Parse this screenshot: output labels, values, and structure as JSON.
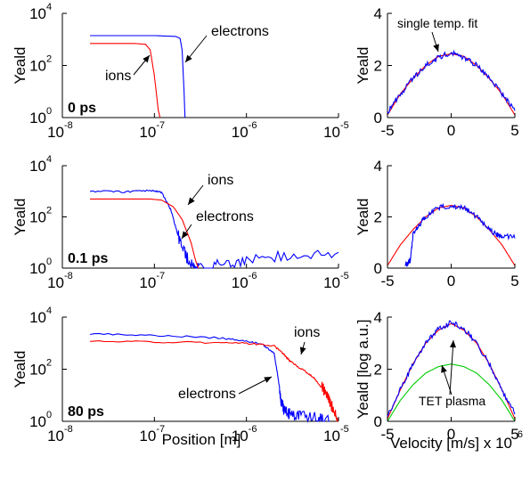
{
  "colors": {
    "ions": "#ff0000",
    "electrons": "#0000ff",
    "fit": "#ff0000",
    "tet": "#00cc00"
  },
  "position_axis": {
    "xlabel": "Position [m]",
    "ylabel": "Yeald",
    "x_ticks": [
      {
        "base": "10",
        "exp": "-8"
      },
      {
        "base": "10",
        "exp": "-7"
      },
      {
        "base": "10",
        "exp": "-6"
      },
      {
        "base": "10",
        "exp": "-5"
      }
    ],
    "y_ticks": [
      {
        "base": "10",
        "exp": "0"
      },
      {
        "base": "10",
        "exp": "2"
      },
      {
        "base": "10",
        "exp": "4"
      }
    ]
  },
  "velocity_axis": {
    "xlabel": "Velocity [m/s] x 10",
    "xlabel_exp": "6",
    "ylabel_top": "Yeald",
    "ylabel_bottom": "Yeald [log a.u.]",
    "x_ticks": [
      "-5",
      "0",
      "5"
    ],
    "y_ticks": [
      "0",
      "2",
      "4"
    ]
  },
  "chart_data": [
    {
      "type": "line",
      "time_label": "0 ps",
      "xlabel": "",
      "ylabel": "Yeald",
      "xscale": "log",
      "yscale": "log",
      "xlim": [
        1e-08,
        1e-05
      ],
      "ylim": [
        1,
        10000
      ],
      "annotations": [
        "ions",
        "electrons"
      ],
      "series": [
        {
          "name": "electrons",
          "x": [
            2e-08,
            1e-07,
            1.7e-07,
            1.9e-07,
            2e-07,
            2.1e-07,
            2.15e-07
          ],
          "y": [
            1400,
            1400,
            1300,
            1100,
            400,
            10,
            1
          ]
        },
        {
          "name": "ions",
          "x": [
            2e-08,
            6e-08,
            8e-08,
            9e-08,
            1e-07,
            1.1e-07,
            1.15e-07
          ],
          "y": [
            700,
            700,
            650,
            400,
            40,
            2,
            1
          ]
        }
      ]
    },
    {
      "type": "line",
      "time_label": "0.1 ps",
      "xlabel": "",
      "ylabel": "Yeald",
      "xscale": "log",
      "yscale": "log",
      "xlim": [
        1e-08,
        1e-05
      ],
      "ylim": [
        1,
        10000
      ],
      "annotations": [
        "ions",
        "electrons"
      ],
      "series": [
        {
          "name": "electrons",
          "x": [
            2e-08,
            5e-08,
            9e-08,
            1.2e-07,
            1.5e-07,
            1.8e-07,
            2.2e-07,
            2.6e-07,
            3e-07,
            5e-07,
            1e-06,
            3e-06,
            1e-05
          ],
          "y": [
            1000,
            950,
            1100,
            900,
            200,
            20,
            3,
            1.2,
            1,
            1.3,
            2,
            3.5,
            4
          ]
        },
        {
          "name": "ions",
          "x": [
            2e-08,
            5e-08,
            9e-08,
            1.2e-07,
            1.6e-07,
            2e-07,
            2.5e-07,
            2.8e-07,
            3e-07
          ],
          "y": [
            500,
            500,
            500,
            450,
            250,
            80,
            10,
            2,
            1
          ]
        }
      ]
    },
    {
      "type": "line",
      "time_label": "80 ps",
      "xlabel": "Position [m]",
      "ylabel": "Yeald",
      "xscale": "log",
      "yscale": "log",
      "xlim": [
        1e-08,
        1e-05
      ],
      "ylim": [
        1,
        10000
      ],
      "annotations": [
        "ions",
        "electrons"
      ],
      "series": [
        {
          "name": "electrons",
          "x": [
            2e-08,
            1e-07,
            5e-07,
            1e-06,
            1.5e-06,
            2e-06,
            2.2e-06,
            2.4e-06,
            2.6e-06,
            3e-06,
            4e-06,
            6e-06,
            8e-06
          ],
          "y": [
            2300,
            2000,
            1600,
            1200,
            900,
            400,
            50,
            5,
            2.5,
            1.8,
            1.5,
            1.3,
            1.1
          ]
        },
        {
          "name": "ions",
          "x": [
            2e-08,
            1e-07,
            5e-07,
            1e-06,
            2e-06,
            2.5e-06,
            3e-06,
            4e-06,
            5e-06,
            6e-06,
            7e-06,
            8e-06,
            9e-06,
            1e-05
          ],
          "y": [
            1200,
            1100,
            1050,
            1000,
            800,
            400,
            200,
            100,
            60,
            30,
            15,
            6,
            2.5,
            1
          ]
        }
      ]
    },
    {
      "type": "line",
      "xlabel": "",
      "ylabel": "Yeald",
      "xlim": [
        -5,
        5
      ],
      "ylim": [
        0,
        4
      ],
      "annotations": [
        "single temp. fit"
      ],
      "series": [
        {
          "name": "single temp. fit",
          "x": [
            -5,
            -4,
            -3,
            -2,
            -1,
            0,
            1,
            2,
            3,
            4,
            5
          ],
          "y": [
            0.1,
            0.9,
            1.5,
            2.0,
            2.35,
            2.45,
            2.35,
            2.0,
            1.5,
            0.9,
            0.1
          ]
        },
        {
          "x": [
            -5,
            -4,
            -3,
            -2,
            -1,
            0,
            1,
            2,
            3,
            4,
            5
          ],
          "y": [
            0.2,
            0.9,
            1.5,
            2.0,
            2.3,
            2.5,
            2.3,
            2.0,
            1.5,
            0.9,
            0.3
          ]
        }
      ]
    },
    {
      "type": "line",
      "xlabel": "",
      "ylabel": "Yeald",
      "xlim": [
        -5,
        5
      ],
      "ylim": [
        0,
        4
      ],
      "series": [
        {
          "x": [
            -5,
            -4,
            -3,
            -2,
            -1,
            0,
            1,
            2,
            3,
            4,
            5
          ],
          "y": [
            0.1,
            0.9,
            1.5,
            2.0,
            2.35,
            2.45,
            2.35,
            2.0,
            1.5,
            0.9,
            0.1
          ]
        },
        {
          "x": [
            -3.6,
            -3.2,
            -3,
            -2.5,
            -2,
            -1,
            0,
            1,
            2,
            3,
            3.6,
            4,
            5
          ],
          "y": [
            0.1,
            0.3,
            1.3,
            1.7,
            2.0,
            2.35,
            2.45,
            2.35,
            2.0,
            1.5,
            1.3,
            1.25,
            1.2
          ]
        }
      ]
    },
    {
      "type": "line",
      "xlabel": "Velocity [m/s] x 10^6",
      "ylabel": "Yeald [log a.u.]",
      "xlim": [
        -5,
        5
      ],
      "ylim": [
        0,
        4
      ],
      "annotations": [
        "TET plasma"
      ],
      "series": [
        {
          "x": [
            -5,
            -4,
            -3,
            -2,
            -1,
            0,
            1,
            2,
            3,
            4,
            5
          ],
          "y": [
            0.1,
            1.2,
            2.2,
            3.0,
            3.5,
            3.75,
            3.5,
            3.0,
            2.2,
            1.2,
            0.1
          ]
        },
        {
          "x": [
            -5,
            -4,
            -3,
            -2,
            -1,
            0,
            1,
            2,
            3,
            4,
            5
          ],
          "y": [
            0.2,
            1.2,
            2.2,
            3.0,
            3.55,
            3.8,
            3.55,
            3.0,
            2.2,
            1.2,
            0.3
          ]
        },
        {
          "name": "TET plasma",
          "x": [
            -5,
            -4,
            -3,
            -2,
            -1,
            0,
            1,
            2,
            3,
            4,
            5
          ],
          "y": [
            0.0,
            0.8,
            1.4,
            1.85,
            2.1,
            2.2,
            2.1,
            1.85,
            1.4,
            0.8,
            0.0
          ]
        }
      ]
    }
  ]
}
